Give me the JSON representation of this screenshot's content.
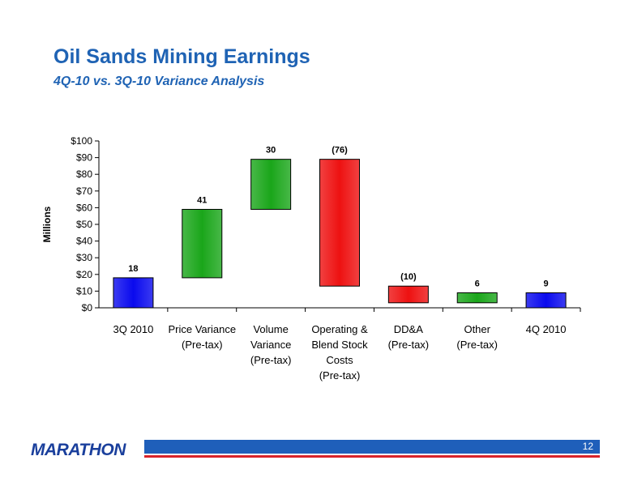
{
  "slide": {
    "title": "Oil Sands Mining Earnings",
    "subtitle": "4Q-10 vs. 3Q-10 Variance Analysis",
    "logo": "MARATHON",
    "page_number": "12"
  },
  "colors": {
    "title": "#1f63b4",
    "total": "#0a0aee",
    "increase": "#1aa61a",
    "decrease": "#ee1111",
    "brand_blue": "#1f5fba",
    "brand_red": "#d8232a"
  },
  "chart_data": {
    "type": "bar",
    "subtype": "waterfall",
    "ylabel": "Millions",
    "ylim": [
      0,
      100
    ],
    "ytick_labels": [
      "$0",
      "$10",
      "$20",
      "$30",
      "$40",
      "$50",
      "$60",
      "$70",
      "$80",
      "$90",
      "$100"
    ],
    "grid": false,
    "categories": [
      [
        "3Q 2010"
      ],
      [
        "Price Variance",
        "(Pre-tax)"
      ],
      [
        "Volume",
        "Variance",
        "(Pre-tax)"
      ],
      [
        "Operating &",
        "Blend Stock",
        "Costs",
        "(Pre-tax)"
      ],
      [
        "DD&A",
        "(Pre-tax)"
      ],
      [
        "Other",
        "(Pre-tax)"
      ],
      [
        "4Q 2010"
      ]
    ],
    "bars": [
      {
        "kind": "total",
        "start": 0,
        "end": 18,
        "label": "18"
      },
      {
        "kind": "increase",
        "start": 18,
        "end": 59,
        "label": "41"
      },
      {
        "kind": "increase",
        "start": 59,
        "end": 89,
        "label": "30"
      },
      {
        "kind": "decrease",
        "start": 89,
        "end": 13,
        "label": "(76)"
      },
      {
        "kind": "decrease",
        "start": 13,
        "end": 3,
        "label": "(10)"
      },
      {
        "kind": "increase",
        "start": 3,
        "end": 9,
        "label": "6"
      },
      {
        "kind": "total",
        "start": 0,
        "end": 9,
        "label": "9"
      }
    ]
  }
}
